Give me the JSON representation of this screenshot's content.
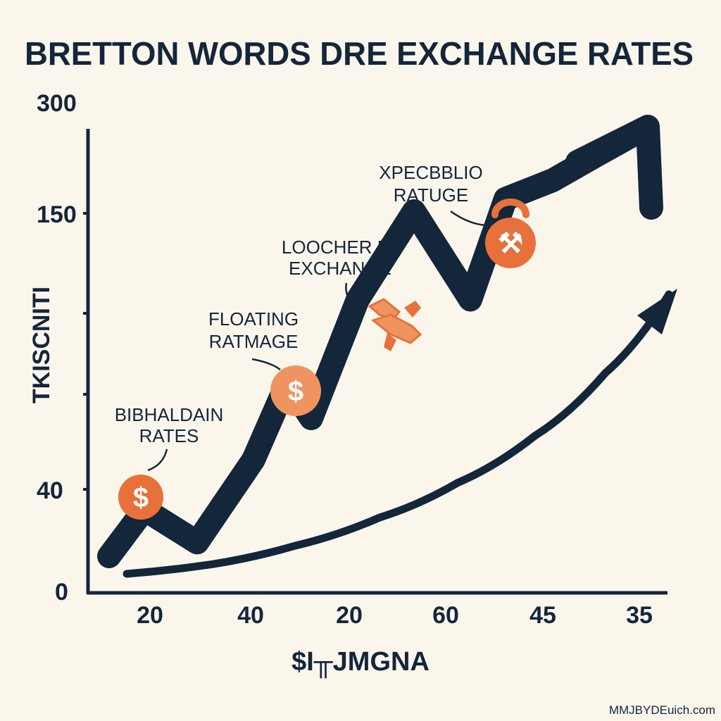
{
  "title": "BRETTON  WORDS DRE EXCHANGE RATES",
  "ylabel": "TKISCNITI",
  "xlabel": "$I╥JMGNA",
  "watermark": "MMJBYDEuich.com",
  "colors": {
    "background": "#fbf6ec",
    "ink": "#13263a",
    "accent": "#e8703a",
    "accent_light": "#ef9460"
  },
  "chart_data": {
    "type": "line",
    "title": "BRETTON  WORDS DRE EXCHANGE RATES",
    "xlabel": "$I╥JMGNA",
    "ylabel": "TKISCNITI",
    "y_tick_labels": [
      "300",
      "150",
      "40",
      "0"
    ],
    "x_tick_labels": [
      "20",
      "40",
      "20",
      "60",
      "45",
      "35"
    ],
    "grid": false,
    "legend": "none",
    "series": [
      {
        "style": "thick zigzag arrow",
        "values": [
          25,
          42,
          30,
          60,
          88,
          75,
          118,
          150,
          118,
          172,
          205,
          250,
          300
        ]
      },
      {
        "style": "thin curved arrow",
        "values": [
          12,
          18,
          30,
          48,
          70,
          100,
          140,
          190
        ]
      }
    ],
    "annotations": [
      {
        "lines": [
          "BIBHALDAIN",
          "RATES"
        ],
        "icon": "dollar-coin-icon",
        "icon_symbol": "$"
      },
      {
        "lines": [
          "FLOATING",
          "RATMAGE"
        ],
        "icon": "dollar-coin-icon",
        "icon_symbol": "$"
      },
      {
        "lines": [
          "LOOCHER FL",
          "EXCHANGE"
        ],
        "icon": "handshake-icon",
        "icon_symbol": ""
      },
      {
        "lines": [
          "XPECBBLIO",
          "RATUGE"
        ],
        "icon": "tools-coin-icon",
        "icon_symbol": "⚒"
      }
    ]
  }
}
